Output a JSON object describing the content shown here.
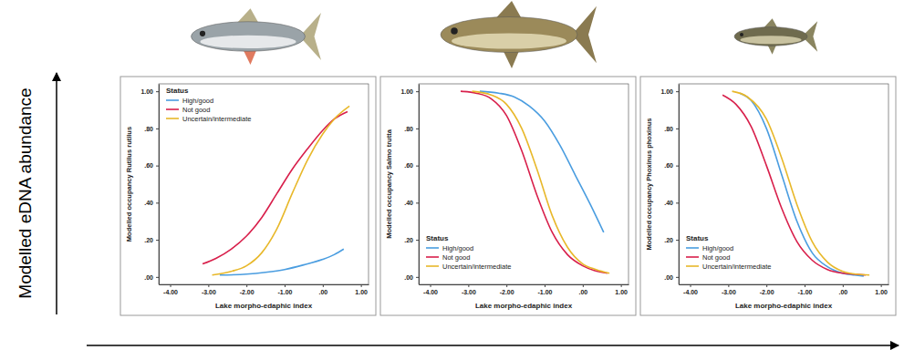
{
  "figure": {
    "ylabel": "Modelled eDNA abundance"
  },
  "chart_data": [
    {
      "type": "line",
      "xlabel": "Lake morpho-edaphic index",
      "ylabel": "Modelled occupancy Rutilus rutilus",
      "legend_title": "Status",
      "legend": "upper left",
      "xlim": [
        -4.3,
        1.2
      ],
      "ylim": [
        -0.04,
        1.04
      ],
      "xticks": [
        {
          "value": -4,
          "label": "-4.00"
        },
        {
          "value": -3,
          "label": "-3.00"
        },
        {
          "value": -2,
          "label": "-2.00"
        },
        {
          "value": -1,
          "label": "-1.00"
        },
        {
          "value": 0,
          "label": ".00"
        },
        {
          "value": 1,
          "label": "1.00"
        }
      ],
      "yticks": [
        {
          "value": 0,
          "label": ".00"
        },
        {
          "value": 0.2,
          "label": ".20"
        },
        {
          "value": 0.4,
          "label": ".40"
        },
        {
          "value": 0.6,
          "label": ".60"
        },
        {
          "value": 0.8,
          "label": ".80"
        },
        {
          "value": 1,
          "label": "1.00"
        }
      ],
      "series": [
        {
          "name": "High/good",
          "color": "#4a9de0",
          "x": [
            -2.7,
            -2.0,
            -1.5,
            -1.0,
            -0.5,
            0,
            0.3,
            0.55
          ],
          "values": [
            0.01,
            0.015,
            0.025,
            0.04,
            0.065,
            0.095,
            0.12,
            0.15
          ]
        },
        {
          "name": "Not good",
          "color": "#d81f4b",
          "x": [
            -3.15,
            -2.8,
            -2.4,
            -2.0,
            -1.6,
            -1.2,
            -0.8,
            -0.4,
            0,
            0.3,
            0.65
          ],
          "values": [
            0.07,
            0.1,
            0.15,
            0.22,
            0.32,
            0.45,
            0.58,
            0.69,
            0.79,
            0.85,
            0.89
          ]
        },
        {
          "name": "Uncertain/intermediate",
          "color": "#e8b82a",
          "x": [
            -2.9,
            -2.4,
            -2.0,
            -1.6,
            -1.2,
            -0.8,
            -0.4,
            0,
            0.3,
            0.7
          ],
          "values": [
            0.01,
            0.03,
            0.06,
            0.13,
            0.26,
            0.45,
            0.63,
            0.77,
            0.85,
            0.92
          ]
        }
      ]
    },
    {
      "type": "line",
      "xlabel": "Lake morpho-edaphic index",
      "ylabel": "Modelled occupancy Salmo trutta",
      "legend_title": "Status",
      "legend": "lower left",
      "xlim": [
        -4.3,
        1.2
      ],
      "ylim": [
        -0.04,
        1.04
      ],
      "xticks": [
        {
          "value": -4,
          "label": "-4.00"
        },
        {
          "value": -3,
          "label": "-3.00"
        },
        {
          "value": -2,
          "label": "-2.00"
        },
        {
          "value": -1,
          "label": "-1.00"
        },
        {
          "value": 0,
          "label": ".00"
        },
        {
          "value": 1,
          "label": "1.00"
        }
      ],
      "yticks": [
        {
          "value": 0,
          "label": ".00"
        },
        {
          "value": 0.2,
          "label": ".20"
        },
        {
          "value": 0.4,
          "label": ".40"
        },
        {
          "value": 0.6,
          "label": ".60"
        },
        {
          "value": 0.8,
          "label": ".80"
        },
        {
          "value": 1,
          "label": "1.00"
        }
      ],
      "series": [
        {
          "name": "High/good",
          "color": "#4a9de0",
          "x": [
            -2.7,
            -2.2,
            -1.8,
            -1.4,
            -1.0,
            -0.6,
            -0.2,
            0.2,
            0.55
          ],
          "values": [
            1.0,
            0.99,
            0.97,
            0.92,
            0.84,
            0.71,
            0.55,
            0.39,
            0.24
          ]
        },
        {
          "name": "Not good",
          "color": "#d81f4b",
          "x": [
            -3.2,
            -2.8,
            -2.4,
            -2.0,
            -1.6,
            -1.2,
            -0.8,
            -0.4,
            0,
            0.3,
            0.65
          ],
          "values": [
            1.0,
            0.99,
            0.96,
            0.87,
            0.68,
            0.44,
            0.24,
            0.12,
            0.06,
            0.035,
            0.02
          ]
        },
        {
          "name": "Uncertain/intermediate",
          "color": "#e8b82a",
          "x": [
            -2.9,
            -2.4,
            -2.0,
            -1.6,
            -1.2,
            -0.8,
            -0.4,
            0,
            0.35,
            0.7
          ],
          "values": [
            1.0,
            0.98,
            0.93,
            0.8,
            0.58,
            0.33,
            0.16,
            0.07,
            0.04,
            0.02
          ]
        }
      ]
    },
    {
      "type": "line",
      "xlabel": "Lake morpho-edaphic index",
      "ylabel": "Modelled occupancy Phoxinus phoxinus",
      "legend_title": "Status",
      "legend": "lower left",
      "xlim": [
        -4.3,
        1.2
      ],
      "ylim": [
        -0.04,
        1.04
      ],
      "xticks": [
        {
          "value": -4,
          "label": "-4.00"
        },
        {
          "value": -3,
          "label": "-3.00"
        },
        {
          "value": -2,
          "label": "-2.00"
        },
        {
          "value": -1,
          "label": "-1.00"
        },
        {
          "value": 0,
          "label": ".00"
        },
        {
          "value": 1,
          "label": "1.00"
        }
      ],
      "yticks": [
        {
          "value": 0,
          "label": ".00"
        },
        {
          "value": 0.2,
          "label": ".20"
        },
        {
          "value": 0.4,
          "label": ".40"
        },
        {
          "value": 0.6,
          "label": ".60"
        },
        {
          "value": 0.8,
          "label": ".80"
        },
        {
          "value": 1,
          "label": "1.00"
        }
      ],
      "series": [
        {
          "name": "High/good",
          "color": "#4a9de0",
          "x": [
            -2.7,
            -2.4,
            -2.0,
            -1.6,
            -1.2,
            -0.8,
            -0.4,
            0,
            0.3,
            0.55
          ],
          "values": [
            0.99,
            0.95,
            0.8,
            0.55,
            0.3,
            0.13,
            0.055,
            0.02,
            0.01,
            0.005
          ]
        },
        {
          "name": "Not good",
          "color": "#d81f4b",
          "x": [
            -3.15,
            -2.8,
            -2.4,
            -2.0,
            -1.6,
            -1.2,
            -0.8,
            -0.4,
            0,
            0.3,
            0.6
          ],
          "values": [
            0.98,
            0.93,
            0.81,
            0.6,
            0.37,
            0.19,
            0.09,
            0.04,
            0.02,
            0.015,
            0.01
          ]
        },
        {
          "name": "Uncertain/intermediate",
          "color": "#e8b82a",
          "x": [
            -2.9,
            -2.5,
            -2.0,
            -1.6,
            -1.2,
            -0.8,
            -0.4,
            0,
            0.35,
            0.7
          ],
          "values": [
            1.0,
            0.97,
            0.85,
            0.64,
            0.39,
            0.19,
            0.08,
            0.03,
            0.015,
            0.01
          ]
        }
      ]
    }
  ]
}
